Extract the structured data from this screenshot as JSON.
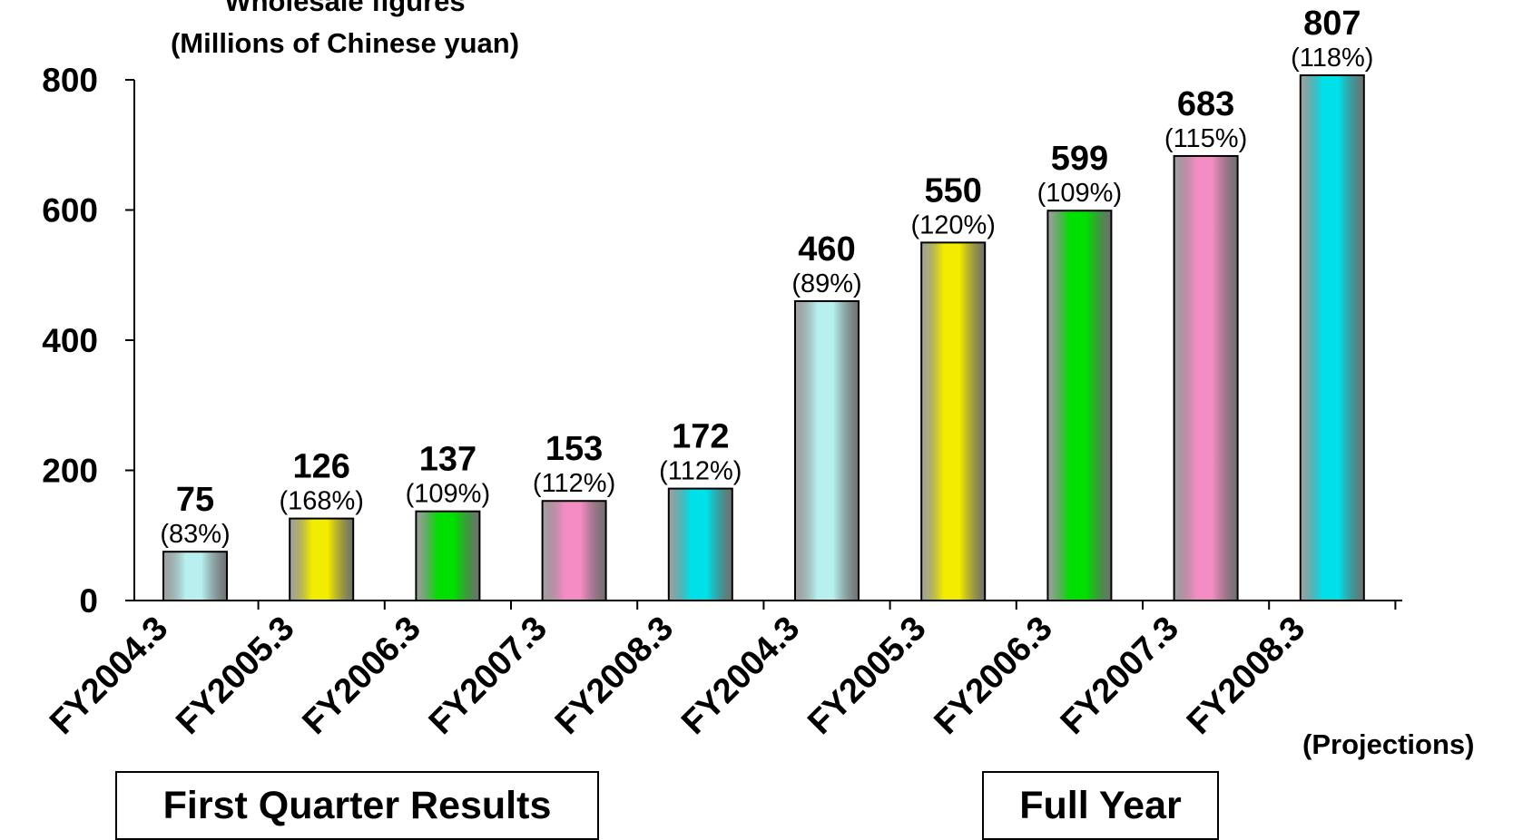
{
  "chart_data": {
    "type": "bar",
    "title_line1": "Wholesale figures",
    "title_line2": "(Millions of Chinese yuan)",
    "categories": [
      "FY2004.3",
      "FY2005.3",
      "FY2006.3",
      "FY2007.3",
      "FY2008.3",
      "FY2004.3",
      "FY2005.3",
      "FY2006.3",
      "FY2007.3",
      "FY2008.3"
    ],
    "values": [
      75,
      126,
      137,
      153,
      172,
      460,
      550,
      599,
      683,
      807
    ],
    "growth_labels": [
      "(83%)",
      "(168%)",
      "(109%)",
      "(112%)",
      "(112%)",
      "(89%)",
      "(120%)",
      "(109%)",
      "(115%)",
      "(118%)"
    ],
    "bar_colors": [
      "#b8f0f0",
      "#f2ec00",
      "#00e000",
      "#f48cc4",
      "#00e0e8",
      "#b8f0f0",
      "#f2ec00",
      "#00e000",
      "#f48cc4",
      "#00e0e8"
    ],
    "yticks": [
      0,
      200,
      400,
      600,
      800
    ],
    "ylim": [
      0,
      800
    ],
    "grid": false,
    "groups": [
      {
        "label": "First Quarter Results",
        "categories": [
          0,
          4
        ]
      },
      {
        "label": "Full Year",
        "categories": [
          5,
          9
        ]
      }
    ],
    "note": "(Projections)"
  }
}
